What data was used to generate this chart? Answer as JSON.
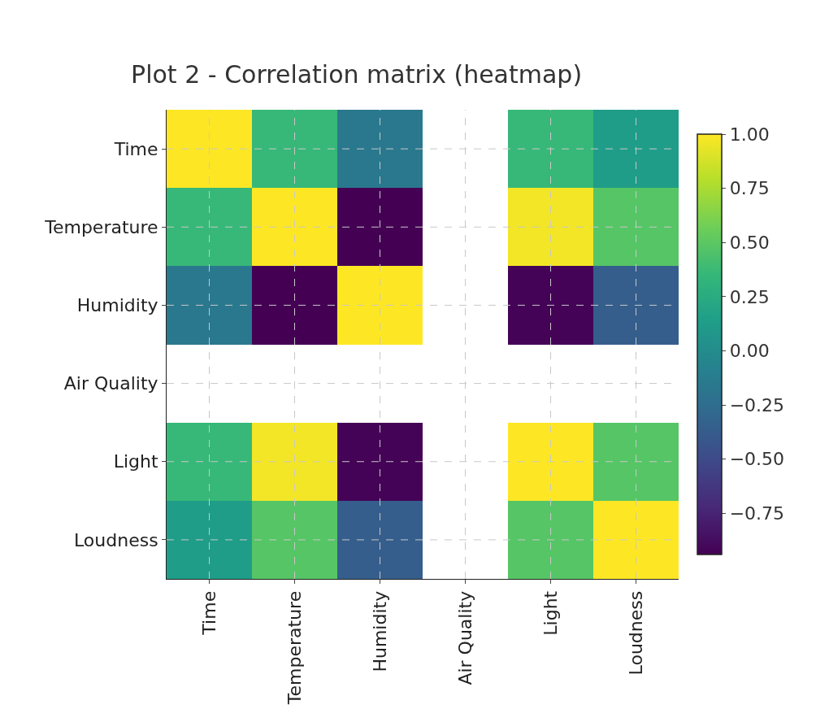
{
  "chart_data": {
    "type": "heatmap",
    "title": "Plot 2 - Correlation matrix (heatmap)",
    "categories": [
      "Time",
      "Temperature",
      "Humidity",
      "Air Quality",
      "Light",
      "Loudness"
    ],
    "y_categories": [
      "Time",
      "Temperature",
      "Humidity",
      "Air Quality",
      "Light",
      "Loudness"
    ],
    "cells": [
      [
        1.0,
        0.36,
        -0.16,
        null,
        0.36,
        0.13
      ],
      [
        0.36,
        1.0,
        -0.94,
        null,
        0.97,
        0.48
      ],
      [
        -0.16,
        -0.94,
        1.0,
        null,
        -0.93,
        -0.36
      ],
      [
        null,
        null,
        null,
        null,
        null,
        null
      ],
      [
        0.36,
        0.97,
        -0.93,
        null,
        1.0,
        0.48
      ],
      [
        0.13,
        0.48,
        -0.36,
        null,
        0.48,
        1.0
      ]
    ],
    "clim": [
      -0.94,
      1.0
    ],
    "cticks": [
      {
        "value": -0.75,
        "label": "−0.75"
      },
      {
        "value": -0.5,
        "label": "−0.50"
      },
      {
        "value": -0.25,
        "label": "−0.25"
      },
      {
        "value": 0,
        "label": "0.00"
      },
      {
        "value": 0.25,
        "label": "0.25"
      },
      {
        "value": 0.5,
        "label": "0.50"
      },
      {
        "value": 0.75,
        "label": "0.75"
      },
      {
        "value": 1.0,
        "label": "1.00"
      }
    ],
    "grid": true
  }
}
